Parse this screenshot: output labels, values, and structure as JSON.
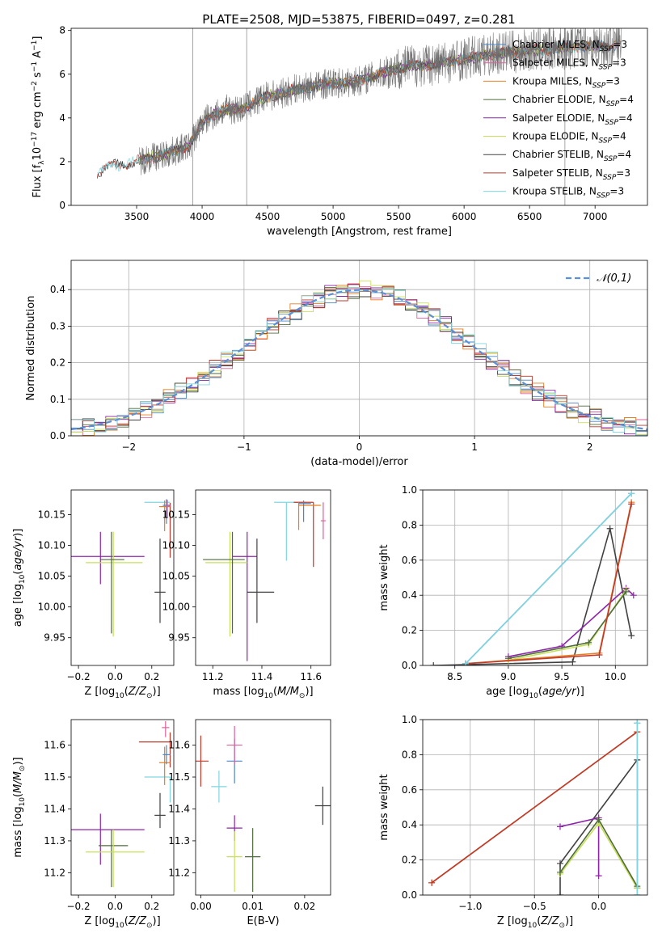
{
  "page": {
    "title": "PLATE=2508, MJD=53875, FIBERID=0497, z=0.281"
  },
  "palette": {
    "Chabrier MILES": "#4a86c8",
    "Salpeter MILES": "#e0609a",
    "Kroupa MILES": "#e67e22",
    "Chabrier ELODIE": "#4f6b3a",
    "Salpeter ELODIE": "#8e24aa",
    "Kroupa ELODIE": "#c6e05a",
    "Chabrier STELIB": "#404040",
    "Salpeter STELIB": "#c0392b",
    "Kroupa STELIB": "#7fd6e0"
  },
  "chart_data": [
    {
      "id": "spectrum",
      "type": "line",
      "title": "PLATE=2508, MJD=53875, FIBERID=0497, z=0.281",
      "xlabel": "wavelength [Angstrom, rest frame]",
      "ylabel": "Flux [f_λ 10^-17 erg cm^-2 s^-1 A^-1]",
      "xlim": [
        3000,
        7400
      ],
      "ylim": [
        0,
        8.1
      ],
      "xticks": [
        3500,
        4000,
        4500,
        5000,
        5500,
        6000,
        6500,
        7000
      ],
      "yticks": [
        0,
        2,
        4,
        6,
        8
      ],
      "legend_position": "right",
      "legend": [
        {
          "label": "Chabrier MILES, N_SSP=3"
        },
        {
          "label": "Salpeter MILES, N_SSP=3"
        },
        {
          "label": "Kroupa MILES, N_SSP=3"
        },
        {
          "label": "Chabrier ELODIE, N_SSP=4"
        },
        {
          "label": "Salpeter ELODIE, N_SSP=4"
        },
        {
          "label": "Kroupa ELODIE, N_SSP=4"
        },
        {
          "label": "Chabrier STELIB, N_SSP=4"
        },
        {
          "label": "Salpeter STELIB, N_SSP=3"
        },
        {
          "label": "Kroupa STELIB, N_SSP=3"
        }
      ],
      "data_envelope": {
        "x": [
          3200,
          3300,
          3400,
          3500,
          3600,
          3700,
          3800,
          3900,
          4000,
          4100,
          4200,
          4300,
          4400,
          4500,
          4600,
          4700,
          4800,
          4900,
          5000,
          5100,
          5200,
          5300,
          5400,
          5500,
          5600,
          5700,
          5800,
          5900,
          6000,
          6100,
          6200,
          6300,
          6400,
          6500,
          6600,
          6700,
          6800,
          6900,
          7000,
          7100,
          7200
        ],
        "y": [
          1.4,
          1.8,
          1.9,
          2.0,
          2.2,
          2.3,
          2.5,
          2.7,
          3.8,
          4.2,
          4.4,
          4.4,
          4.7,
          5.0,
          5.1,
          5.3,
          5.4,
          5.5,
          5.6,
          5.6,
          5.7,
          5.9,
          6.1,
          6.3,
          6.4,
          6.4,
          6.5,
          6.6,
          6.7,
          6.8,
          6.9,
          7.0,
          7.0,
          7.1,
          7.1,
          7.2,
          7.2,
          7.3,
          7.3,
          7.3,
          7.4
        ]
      }
    },
    {
      "id": "residuals",
      "type": "line",
      "xlabel": "(data-model)/error",
      "ylabel": "Normed distribution",
      "xlim": [
        -2.5,
        2.5
      ],
      "ylim": [
        0,
        0.48
      ],
      "xticks": [
        -2,
        -1,
        0,
        1,
        2
      ],
      "yticks": [
        0.0,
        0.1,
        0.2,
        0.3,
        0.4
      ],
      "grid": true,
      "legend_position": "top-right",
      "legend": [
        {
          "label": "𝒩(0,1)"
        }
      ],
      "reference_curve": "normal(0,1)"
    },
    {
      "id": "age_vs_Z",
      "type": "scatter",
      "xlabel": "Z [log10(Z/Z⊙)]",
      "ylabel": "age  [log10(age/yr)]",
      "xlim": [
        -0.24,
        0.32
      ],
      "ylim": [
        9.905,
        10.19
      ],
      "xticks": [
        -0.2,
        0.0,
        0.2
      ],
      "yticks": [
        9.95,
        10.0,
        10.05,
        10.1,
        10.15
      ],
      "points": [
        {
          "name": "Salpeter ELODIE",
          "x": -0.08,
          "xerr": [
            0.16,
            0.24
          ],
          "y": 10.082,
          "yerr": [
            0.045,
            0.04
          ]
        },
        {
          "name": "Kroupa ELODIE",
          "x": -0.01,
          "xerr": [
            0.15,
            0.16
          ],
          "y": 10.072,
          "yerr": [
            0.12,
            0.05
          ]
        },
        {
          "name": "Chabrier ELODIE",
          "x": -0.02,
          "xerr": [
            0.06,
            0.07
          ],
          "y": 10.077,
          "yerr": [
            0.12,
            0.045
          ]
        },
        {
          "name": "Chabrier STELIB",
          "x": 0.245,
          "xerr": [
            0.03,
            0.03
          ],
          "y": 10.024,
          "yerr": [
            0.05,
            0.087
          ]
        },
        {
          "name": "Kroupa STELIB",
          "x": 0.3,
          "xerr": [
            0.14,
            0.0
          ],
          "y": 10.17,
          "yerr": [
            0.0,
            0.0
          ]
        },
        {
          "name": "Salpeter STELIB",
          "x": 0.3,
          "xerr": [
            0.02,
            0.0
          ],
          "y": 10.165,
          "yerr": [
            0.085,
            0.004
          ]
        },
        {
          "name": "Kroupa MILES",
          "x": 0.27,
          "xerr": [
            0.03,
            0.03
          ],
          "y": 10.163,
          "yerr": [
            0.04,
            0.01
          ]
        },
        {
          "name": "Chabrier MILES",
          "x": 0.28,
          "xerr": [
            0.02,
            0.02
          ],
          "y": 10.165,
          "yerr": [
            0.03,
            0.01
          ]
        },
        {
          "name": "Salpeter MILES",
          "x": 0.285,
          "xerr": [
            0.01,
            0.02
          ],
          "y": 10.164,
          "yerr": [
            0.02,
            0.01
          ]
        }
      ]
    },
    {
      "id": "age_vs_mass",
      "type": "scatter",
      "xlabel": "mass [log10(M/M⊙)]",
      "xlim": [
        11.13,
        11.68
      ],
      "ylim": [
        9.905,
        10.19
      ],
      "xticks": [
        11.2,
        11.4,
        11.6
      ],
      "yticks": [
        9.95,
        10.0,
        10.05,
        10.1,
        10.15
      ],
      "points": [
        {
          "name": "Salpeter ELODIE",
          "x": 11.34,
          "xerr": [
            0.06,
            0.04
          ],
          "y": 10.082,
          "yerr": [
            0.17,
            0.04
          ]
        },
        {
          "name": "Kroupa ELODIE",
          "x": 11.27,
          "xerr": [
            0.1,
            0.07
          ],
          "y": 10.072,
          "yerr": [
            0.12,
            0.05
          ]
        },
        {
          "name": "Chabrier ELODIE",
          "x": 11.28,
          "xerr": [
            0.12,
            0.05
          ],
          "y": 10.077,
          "yerr": [
            0.12,
            0.045
          ]
        },
        {
          "name": "Chabrier STELIB",
          "x": 11.38,
          "xerr": [
            0.04,
            0.07
          ],
          "y": 10.024,
          "yerr": [
            0.05,
            0.087
          ]
        },
        {
          "name": "Kroupa STELIB",
          "x": 11.5,
          "xerr": [
            0.05,
            0.08
          ],
          "y": 10.17,
          "yerr": [
            0.095,
            0.0
          ]
        },
        {
          "name": "Salpeter STELIB",
          "x": 11.61,
          "xerr": [
            0.08,
            0.0
          ],
          "y": 10.17,
          "yerr": [
            0.105,
            0.0
          ]
        },
        {
          "name": "Kroupa MILES",
          "x": 11.55,
          "xerr": [
            0.0,
            0.09
          ],
          "y": 10.165,
          "yerr": [
            0.04,
            0.005
          ]
        },
        {
          "name": "Chabrier MILES",
          "x": 11.57,
          "xerr": [
            0.02,
            0.03
          ],
          "y": 10.168,
          "yerr": [
            0.03,
            0.005
          ]
        },
        {
          "name": "Salpeter MILES",
          "x": 11.65,
          "xerr": [
            0.01,
            0.01
          ],
          "y": 10.14,
          "yerr": [
            0.03,
            0.03
          ]
        }
      ]
    },
    {
      "id": "weight_vs_age",
      "type": "line",
      "xlabel": "age  [log10(age/yr)]",
      "ylabel": "mass weight",
      "xlim": [
        8.2,
        10.3
      ],
      "ylim": [
        0,
        1.0
      ],
      "xticks": [
        8.5,
        9.0,
        9.5,
        10.0
      ],
      "yticks": [
        0.0,
        0.2,
        0.4,
        0.6,
        0.8,
        1.0
      ],
      "grid": true,
      "series": [
        {
          "name": "Chabrier STELIB",
          "x": [
            8.3,
            9.6,
            9.95,
            10.15
          ],
          "y": [
            0.0,
            0.02,
            0.78,
            0.17
          ]
        },
        {
          "name": "Salpeter ELODIE",
          "x": [
            9.0,
            9.5,
            10.1,
            10.17
          ],
          "y": [
            0.05,
            0.11,
            0.44,
            0.4
          ]
        },
        {
          "name": "Kroupa ELODIE",
          "x": [
            9.0,
            9.75,
            10.1
          ],
          "y": [
            0.03,
            0.12,
            0.43
          ]
        },
        {
          "name": "Chabrier ELODIE",
          "x": [
            9.0,
            9.75,
            10.1
          ],
          "y": [
            0.04,
            0.13,
            0.42
          ]
        },
        {
          "name": "Kroupa MILES",
          "x": [
            8.6,
            9.85,
            10.15
          ],
          "y": [
            0.01,
            0.07,
            0.93
          ]
        },
        {
          "name": "Salpeter STELIB",
          "x": [
            8.6,
            9.85,
            10.15
          ],
          "y": [
            0.01,
            0.06,
            0.92
          ]
        },
        {
          "name": "Chabrier MILES",
          "x": [
            8.6,
            10.15
          ],
          "y": [
            0.01,
            0.98
          ]
        },
        {
          "name": "Kroupa STELIB",
          "x": [
            8.6,
            10.15
          ],
          "y": [
            0.01,
            0.98
          ]
        }
      ]
    },
    {
      "id": "mass_vs_Z",
      "type": "scatter",
      "xlabel": "Z [log10(Z/Z⊙)]",
      "ylabel": "mass [log10(M/M⊙)]",
      "xlim": [
        -0.24,
        0.32
      ],
      "ylim": [
        11.13,
        11.68
      ],
      "xticks": [
        -0.2,
        0.0,
        0.2
      ],
      "yticks": [
        11.2,
        11.3,
        11.4,
        11.5,
        11.6
      ],
      "points": [
        {
          "name": "Salpeter ELODIE",
          "x": -0.08,
          "xerr": [
            0.16,
            0.24
          ],
          "y": 11.335,
          "yerr": [
            0.11,
            0.05
          ]
        },
        {
          "name": "Chabrier ELODIE",
          "x": -0.02,
          "xerr": [
            0.07,
            0.09
          ],
          "y": 11.285,
          "yerr": [
            0.13,
            0.05
          ]
        },
        {
          "name": "Kroupa ELODIE",
          "x": -0.01,
          "xerr": [
            0.15,
            0.17
          ],
          "y": 11.265,
          "yerr": [
            0.11,
            0.07
          ]
        },
        {
          "name": "Chabrier STELIB",
          "x": 0.245,
          "xerr": [
            0.03,
            0.03
          ],
          "y": 11.38,
          "yerr": [
            0.04,
            0.07
          ]
        },
        {
          "name": "Kroupa STELIB",
          "x": 0.3,
          "xerr": [
            0.14,
            0.0
          ],
          "y": 11.5,
          "yerr": [
            0.08,
            0.0
          ]
        },
        {
          "name": "Salpeter STELIB",
          "x": 0.3,
          "xerr": [
            0.17,
            0.0
          ],
          "y": 11.61,
          "yerr": [
            0.08,
            0.03
          ]
        },
        {
          "name": "Kroupa MILES",
          "x": 0.27,
          "xerr": [
            0.03,
            0.03
          ],
          "y": 11.545,
          "yerr": [
            0.07,
            0.05
          ]
        },
        {
          "name": "Chabrier MILES",
          "x": 0.28,
          "xerr": [
            0.02,
            0.02
          ],
          "y": 11.57,
          "yerr": [
            0.03,
            0.03
          ]
        },
        {
          "name": "Salpeter MILES",
          "x": 0.275,
          "xerr": [
            0.02,
            0.02
          ],
          "y": 11.655,
          "yerr": [
            0.03,
            0.02
          ]
        }
      ]
    },
    {
      "id": "mass_vs_ebv",
      "type": "scatter",
      "xlabel": "E(B-V)",
      "xlim": [
        -0.001,
        0.025
      ],
      "ylim": [
        11.13,
        11.68
      ],
      "xticks": [
        0.0,
        0.01,
        0.02
      ],
      "yticks": [
        11.2,
        11.3,
        11.4,
        11.5,
        11.6
      ],
      "points": [
        {
          "name": "Salpeter STELIB",
          "x": 0.0,
          "y": 11.55,
          "yerr": [
            0.08,
            0.08
          ]
        },
        {
          "name": "Kroupa STELIB",
          "x": 0.0035,
          "y": 11.47,
          "yerr": [
            0.05,
            0.05
          ]
        },
        {
          "name": "Chabrier MILES",
          "x": 0.0065,
          "y": 11.55,
          "yerr": [
            0.07,
            0.07
          ]
        },
        {
          "name": "Salpeter MILES",
          "x": 0.0065,
          "y": 11.6,
          "yerr": [
            0.06,
            0.06
          ]
        },
        {
          "name": "Salpeter ELODIE",
          "x": 0.0065,
          "y": 11.34,
          "yerr": [
            0.04,
            0.04
          ]
        },
        {
          "name": "Kroupa ELODIE",
          "x": 0.0065,
          "y": 11.25,
          "yerr": [
            0.11,
            0.08
          ]
        },
        {
          "name": "Chabrier ELODIE",
          "x": 0.01,
          "y": 11.25,
          "yerr": [
            0.11,
            0.09
          ]
        },
        {
          "name": "Chabrier STELIB",
          "x": 0.0235,
          "y": 11.41,
          "yerr": [
            0.06,
            0.06
          ]
        }
      ]
    },
    {
      "id": "weight_vs_Z",
      "type": "line",
      "xlabel": "Z [log10(Z/Z⊙)]",
      "ylabel": "mass weight",
      "xlim": [
        -1.37,
        0.38
      ],
      "ylim": [
        0,
        1.0
      ],
      "xticks": [
        -1.0,
        -0.5,
        0.0
      ],
      "yticks": [
        0.0,
        0.2,
        0.4,
        0.6,
        0.8,
        1.0
      ],
      "grid": true,
      "series": [
        {
          "name": "Kroupa MILES",
          "x": [
            -1.3,
            0.3
          ],
          "y": [
            0.07,
            0.93
          ]
        },
        {
          "name": "Salpeter STELIB",
          "x": [
            -1.3,
            0.3
          ],
          "y": [
            0.07,
            0.93
          ]
        },
        {
          "name": "Chabrier STELIB",
          "x": [
            -0.3,
            -0.3,
            0.3,
            0.3
          ],
          "y": [
            0.0,
            0.18,
            0.77,
            0.04
          ]
        },
        {
          "name": "Salpeter ELODIE",
          "x": [
            -0.3,
            0.0,
            0.0
          ],
          "y": [
            0.39,
            0.44,
            0.11
          ]
        },
        {
          "name": "Kroupa ELODIE",
          "x": [
            -0.3,
            0.0,
            0.3
          ],
          "y": [
            0.12,
            0.41,
            0.04
          ]
        },
        {
          "name": "Chabrier ELODIE",
          "x": [
            -0.3,
            0.0,
            0.3
          ],
          "y": [
            0.13,
            0.43,
            0.05
          ]
        },
        {
          "name": "Chabrier MILES",
          "x": [
            0.3,
            0.3
          ],
          "y": [
            0.0,
            0.98
          ]
        },
        {
          "name": "Kroupa STELIB",
          "x": [
            0.3,
            0.3
          ],
          "y": [
            0.0,
            0.98
          ]
        }
      ]
    }
  ]
}
